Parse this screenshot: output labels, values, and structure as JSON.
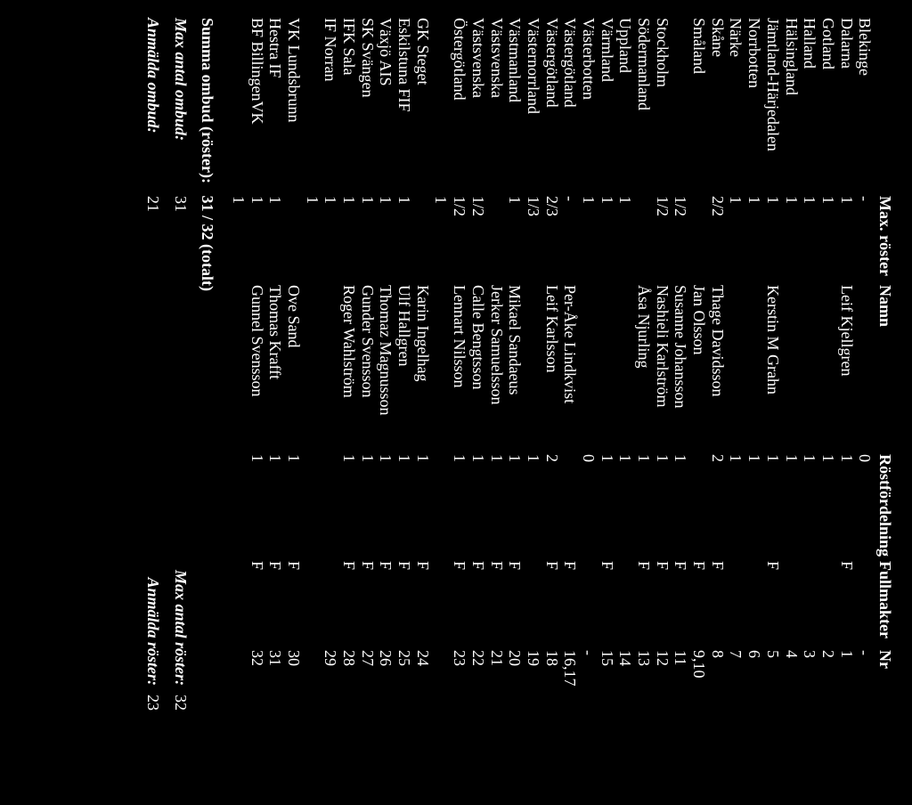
{
  "headers": {
    "region": "",
    "maxRoster": "Max. röster",
    "namn": "Namn",
    "rostfordelning": "Röstfördelning",
    "fullmakter": "Fullmakter",
    "nr": "Nr"
  },
  "rows": [
    {
      "region": "Blekinge",
      "max": "-",
      "namn": "",
      "rf": "0",
      "full": "",
      "nr": "-"
    },
    {
      "region": "Dalarna",
      "max": "1",
      "namn": "Leif Kjellgren",
      "rf": "1",
      "full": "F",
      "nr": "1"
    },
    {
      "region": "Gotland",
      "max": "1",
      "namn": "",
      "rf": "1",
      "full": "",
      "nr": "2"
    },
    {
      "region": "Halland",
      "max": "1",
      "namn": "",
      "rf": "1",
      "full": "",
      "nr": "3"
    },
    {
      "region": "Hälsingland",
      "max": "1",
      "namn": "",
      "rf": "1",
      "full": "",
      "nr": "4"
    },
    {
      "region": "Jämtland-Härjedalen",
      "max": "1",
      "namn": "Kerstin M Grahn",
      "rf": "1",
      "full": "F",
      "nr": "5"
    },
    {
      "region": "Norrbotten",
      "max": "1",
      "namn": "",
      "rf": "1",
      "full": "",
      "nr": "6"
    },
    {
      "region": "Närke",
      "max": "1",
      "namn": "",
      "rf": "1",
      "full": "",
      "nr": "7"
    },
    {
      "region": "Skåne",
      "max": "2/2",
      "namn": "Thage Davidsson",
      "rf": "2",
      "full": "F",
      "nr": "8"
    },
    {
      "region": "Småland",
      "max": "",
      "namn": "Jan Olsson",
      "rf": "",
      "full": "F",
      "nr": "9,10"
    },
    {
      "region": "",
      "max": "1/2",
      "namn": "Susanne Johansson",
      "rf": "1",
      "full": "F",
      "nr": "11"
    },
    {
      "region": "Stockholm",
      "max": "1/2",
      "namn": "Nashieli Karlström",
      "rf": "1",
      "full": "F",
      "nr": "12"
    },
    {
      "region": "Södermanland",
      "max": "",
      "namn": "Åsa Njurling",
      "rf": "1",
      "full": "F",
      "nr": "13"
    },
    {
      "region": "Uppland",
      "max": "1",
      "namn": "",
      "rf": "1",
      "full": "",
      "nr": "14"
    },
    {
      "region": "Värmland",
      "max": "1",
      "namn": "",
      "rf": "1",
      "full": "F",
      "nr": "15"
    },
    {
      "region": "Västerbotten",
      "max": "1",
      "namn": "",
      "rf": "0",
      "full": "",
      "nr": "-"
    },
    {
      "region": "Västergötland",
      "max": "-",
      "namn": "Per-Åke Lindkvist",
      "rf": "",
      "full": "F",
      "nr": "16,17"
    },
    {
      "region": "Västergötland",
      "max": "2/3",
      "namn": "Leif Karlsson",
      "rf": "2",
      "full": "F",
      "nr": "18"
    },
    {
      "region": "Västernorrland",
      "max": "1/3",
      "namn": "",
      "rf": "1",
      "full": "",
      "nr": "19"
    },
    {
      "region": "Västmanland",
      "max": "1",
      "namn": "Mikael Sandaeus",
      "rf": "1",
      "full": "F",
      "nr": "20"
    },
    {
      "region": "Västsvenska",
      "max": "",
      "namn": "Jerker Samuelsson",
      "rf": "1",
      "full": "F",
      "nr": "21"
    },
    {
      "region": "Västsvenska",
      "max": "1/2",
      "namn": "Calle Bengtsson",
      "rf": "1",
      "full": "F",
      "nr": "22"
    },
    {
      "region": "Östergötland",
      "max": "1/2",
      "namn": "Lennart Nilsson",
      "rf": "1",
      "full": "F",
      "nr": "23"
    },
    {
      "region": "",
      "max": "1",
      "namn": "",
      "rf": "",
      "full": "",
      "nr": ""
    },
    {
      "region": "GK Steget",
      "max": "",
      "namn": "Karin Ingelhag",
      "rf": "1",
      "full": "F",
      "nr": "24"
    },
    {
      "region": "Eskilstuna FIF",
      "max": "1",
      "namn": "Ulf Hallgren",
      "rf": "1",
      "full": "F",
      "nr": "25"
    },
    {
      "region": "Växjö AIS",
      "max": "1",
      "namn": "Thomaz Magnusson",
      "rf": "1",
      "full": "F",
      "nr": "26"
    },
    {
      "region": "SK Svängen",
      "max": "1",
      "namn": "Gunder Svensson",
      "rf": "1",
      "full": "F",
      "nr": "27"
    },
    {
      "region": "IFK Sala",
      "max": "1",
      "namn": "Roger Wahlström",
      "rf": "1",
      "full": "F",
      "nr": "28"
    },
    {
      "region": "IF Norran",
      "max": "1",
      "namn": "",
      "rf": "",
      "full": "",
      "nr": "29"
    },
    {
      "region": "",
      "max": "1",
      "namn": "",
      "rf": "",
      "full": "",
      "nr": ""
    },
    {
      "region": "VK Lundsbrunn",
      "max": "",
      "namn": "Ove Sand",
      "rf": "1",
      "full": "F",
      "nr": "30"
    },
    {
      "region": "Hestra IF",
      "max": "1",
      "namn": "Thomas Krafft",
      "rf": "1",
      "full": "F",
      "nr": "31"
    },
    {
      "region": "BF BillingenVK",
      "max": "1",
      "namn": "Gunnel Svensson",
      "rf": "1",
      "full": "F",
      "nr": "32"
    },
    {
      "region": "",
      "max": "1",
      "namn": "",
      "rf": "",
      "full": "",
      "nr": ""
    }
  ],
  "summary": {
    "label": "Summa ombud (röster):",
    "value": "31 / 32 (totalt)"
  },
  "totals": {
    "left": [
      {
        "label": "Max antal ombud:",
        "value": "31"
      },
      {
        "label": "Anmälda ombud:",
        "value": "21"
      }
    ],
    "right": [
      {
        "label": "Max antal röster:",
        "value": "32"
      },
      {
        "label": "Anmälda röster:",
        "value": "23"
      }
    ]
  }
}
